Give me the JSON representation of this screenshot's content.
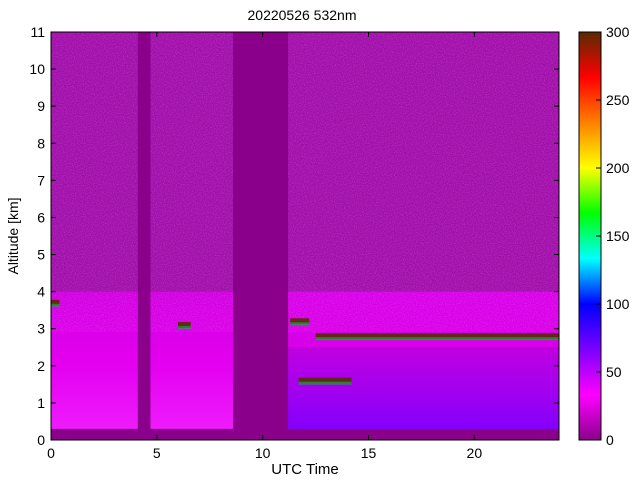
{
  "chart_data": {
    "type": "heatmap",
    "title": "20220526 532nm",
    "xlabel": "UTC Time",
    "ylabel": "Altitude [km]",
    "xlim": [
      0,
      24
    ],
    "ylim": [
      0,
      11
    ],
    "x_ticks": [
      0,
      5,
      10,
      15,
      20
    ],
    "y_ticks": [
      0,
      1,
      2,
      3,
      4,
      5,
      6,
      7,
      8,
      9,
      10,
      11
    ],
    "colorbar": {
      "range": [
        0,
        300
      ],
      "ticks": [
        0,
        50,
        100,
        150,
        200,
        250,
        300
      ],
      "colormap": [
        "#8b008b",
        "#ff00ff",
        "#7b00ff",
        "#0000ff",
        "#00ffff",
        "#00ff00",
        "#ffff00",
        "#ff8000",
        "#ff0000",
        "#5a2a00"
      ]
    },
    "data_gaps_utc_hours": [
      [
        4.1,
        4.7
      ],
      [
        8.6,
        11.2
      ]
    ],
    "cloud_layers": [
      {
        "x_start": 11.3,
        "x_end": 12.2,
        "altitude_km": 3.2
      },
      {
        "x_start": 11.7,
        "x_end": 14.2,
        "altitude_km": 1.6
      },
      {
        "x_start": 12.5,
        "x_end": 24.0,
        "altitude_km": 2.8
      },
      {
        "x_start": 6.0,
        "x_end": 6.6,
        "altitude_km": 3.1
      },
      {
        "x_start": 0.0,
        "x_end": 0.4,
        "altitude_km": 3.7
      }
    ],
    "boundary_layer_top_km": 2.5,
    "grid": false,
    "legend": "colorbar-right"
  }
}
